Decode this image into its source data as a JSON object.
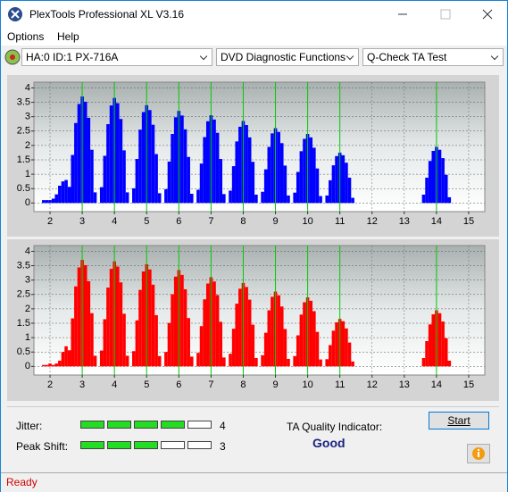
{
  "window": {
    "title": "PlexTools Professional XL V3.16"
  },
  "menu": [
    "Options",
    "Help"
  ],
  "toolbar": {
    "drive": "HA:0 ID:1  PX-716A",
    "function": "DVD Diagnostic Functions",
    "test": "Q-Check TA Test"
  },
  "chart_data": [
    {
      "type": "bar",
      "color": "#0000ff",
      "marker_color": "#00cc00",
      "xlim": [
        1.5,
        15.5
      ],
      "xticks": [
        2,
        3,
        4,
        5,
        6,
        7,
        8,
        9,
        10,
        11,
        12,
        13,
        14,
        15
      ],
      "ylim": [
        -0.3,
        4.2
      ],
      "yticks": [
        0,
        0.5,
        1,
        1.5,
        2,
        2.5,
        3,
        3.5,
        4
      ],
      "grid": true,
      "markers": [
        3,
        4,
        5,
        6,
        7,
        8,
        9,
        10,
        11,
        14
      ],
      "x": [
        1.8,
        1.9,
        2.0,
        2.1,
        2.2,
        2.3,
        2.4,
        2.5,
        2.6,
        2.7,
        2.8,
        2.9,
        3.0,
        3.1,
        3.2,
        3.3,
        3.4,
        3.6,
        3.7,
        3.8,
        3.9,
        4.0,
        4.1,
        4.2,
        4.3,
        4.4,
        4.6,
        4.7,
        4.8,
        4.9,
        5.0,
        5.1,
        5.2,
        5.3,
        5.4,
        5.6,
        5.7,
        5.8,
        5.9,
        6.0,
        6.1,
        6.2,
        6.3,
        6.4,
        6.6,
        6.7,
        6.8,
        6.9,
        7.0,
        7.1,
        7.2,
        7.3,
        7.4,
        7.6,
        7.7,
        7.8,
        7.9,
        8.0,
        8.1,
        8.2,
        8.3,
        8.4,
        8.6,
        8.7,
        8.8,
        8.9,
        9.0,
        9.1,
        9.2,
        9.3,
        9.4,
        9.6,
        9.7,
        9.8,
        9.9,
        10.0,
        10.1,
        10.2,
        10.3,
        10.4,
        10.6,
        10.7,
        10.8,
        10.9,
        11.0,
        11.1,
        11.2,
        11.3,
        11.4,
        13.6,
        13.7,
        13.8,
        13.9,
        14.0,
        14.1,
        14.2,
        14.3,
        14.4
      ],
      "values": [
        0.1,
        0.1,
        0.1,
        0.15,
        0.3,
        0.6,
        0.75,
        0.8,
        0.56,
        1.67,
        2.78,
        3.44,
        3.7,
        3.52,
        2.96,
        1.85,
        0.37,
        0.55,
        1.64,
        2.74,
        3.39,
        3.65,
        3.47,
        2.92,
        1.83,
        0.37,
        0.51,
        1.53,
        2.55,
        3.16,
        3.4,
        3.23,
        2.72,
        1.7,
        0.34,
        0.48,
        1.44,
        2.4,
        2.98,
        3.2,
        3.04,
        2.56,
        1.6,
        0.32,
        0.46,
        1.37,
        2.29,
        2.84,
        3.05,
        2.9,
        2.44,
        1.53,
        0.31,
        0.43,
        1.28,
        2.14,
        2.65,
        2.85,
        2.71,
        2.28,
        1.43,
        0.29,
        0.39,
        1.17,
        1.95,
        2.42,
        2.6,
        2.47,
        2.08,
        1.3,
        0.26,
        0.36,
        1.08,
        1.8,
        2.23,
        2.4,
        2.28,
        1.92,
        1.2,
        0.24,
        0.26,
        0.79,
        1.31,
        1.63,
        1.75,
        1.66,
        1.4,
        0.88,
        0.18,
        0.29,
        0.88,
        1.46,
        1.81,
        1.95,
        1.85,
        1.56,
        0.98,
        0.2
      ]
    },
    {
      "type": "bar",
      "color": "#ff0000",
      "marker_color": "#00cc00",
      "xlim": [
        1.5,
        15.5
      ],
      "xticks": [
        2,
        3,
        4,
        5,
        6,
        7,
        8,
        9,
        10,
        11,
        12,
        13,
        14,
        15
      ],
      "ylim": [
        -0.3,
        4.2
      ],
      "yticks": [
        0,
        0.5,
        1,
        1.5,
        2,
        2.5,
        3,
        3.5,
        4
      ],
      "grid": true,
      "markers": [
        3,
        4,
        5,
        6,
        7,
        8,
        9,
        10,
        11,
        14
      ],
      "x": [
        1.8,
        1.9,
        2.0,
        2.1,
        2.2,
        2.3,
        2.4,
        2.5,
        2.6,
        2.7,
        2.8,
        2.9,
        3.0,
        3.1,
        3.2,
        3.3,
        3.4,
        3.6,
        3.7,
        3.8,
        3.9,
        4.0,
        4.1,
        4.2,
        4.3,
        4.4,
        4.6,
        4.7,
        4.8,
        4.9,
        5.0,
        5.1,
        5.2,
        5.3,
        5.4,
        5.6,
        5.7,
        5.8,
        5.9,
        6.0,
        6.1,
        6.2,
        6.3,
        6.4,
        6.6,
        6.7,
        6.8,
        6.9,
        7.0,
        7.1,
        7.2,
        7.3,
        7.4,
        7.6,
        7.7,
        7.8,
        7.9,
        8.0,
        8.1,
        8.2,
        8.3,
        8.4,
        8.6,
        8.7,
        8.8,
        8.9,
        9.0,
        9.1,
        9.2,
        9.3,
        9.4,
        9.6,
        9.7,
        9.8,
        9.9,
        10.0,
        10.1,
        10.2,
        10.3,
        10.4,
        10.6,
        10.7,
        10.8,
        10.9,
        11.0,
        11.1,
        11.2,
        11.3,
        11.4,
        13.6,
        13.7,
        13.8,
        13.9,
        14.0,
        14.1,
        14.2,
        14.3,
        14.4
      ],
      "values": [
        0.05,
        0.05,
        0.1,
        0.05,
        0.1,
        0.2,
        0.5,
        0.7,
        0.56,
        1.67,
        2.78,
        3.44,
        3.7,
        3.52,
        2.96,
        1.85,
        0.37,
        0.55,
        1.64,
        2.74,
        3.39,
        3.65,
        3.47,
        2.92,
        1.83,
        0.37,
        0.53,
        1.6,
        2.66,
        3.3,
        3.55,
        3.37,
        2.84,
        1.78,
        0.36,
        0.5,
        1.51,
        2.51,
        3.12,
        3.35,
        3.18,
        2.68,
        1.68,
        0.34,
        0.47,
        1.4,
        2.33,
        2.88,
        3.1,
        2.95,
        2.48,
        1.55,
        0.31,
        0.44,
        1.31,
        2.18,
        2.7,
        2.9,
        2.76,
        2.32,
        1.45,
        0.29,
        0.39,
        1.17,
        1.95,
        2.42,
        2.6,
        2.47,
        2.08,
        1.3,
        0.26,
        0.36,
        1.08,
        1.8,
        2.23,
        2.4,
        2.28,
        1.92,
        1.2,
        0.24,
        0.25,
        0.74,
        1.24,
        1.53,
        1.65,
        1.57,
        1.32,
        0.83,
        0.17,
        0.29,
        0.88,
        1.46,
        1.81,
        1.95,
        1.85,
        1.56,
        0.98,
        0.2
      ]
    }
  ],
  "results": {
    "jitter": {
      "label": "Jitter:",
      "value": 4
    },
    "peak_shift": {
      "label": "Peak Shift:",
      "value": 3
    },
    "ta_label": "TA Quality Indicator:",
    "ta_value": "Good",
    "start": "Start"
  },
  "status": "Ready"
}
